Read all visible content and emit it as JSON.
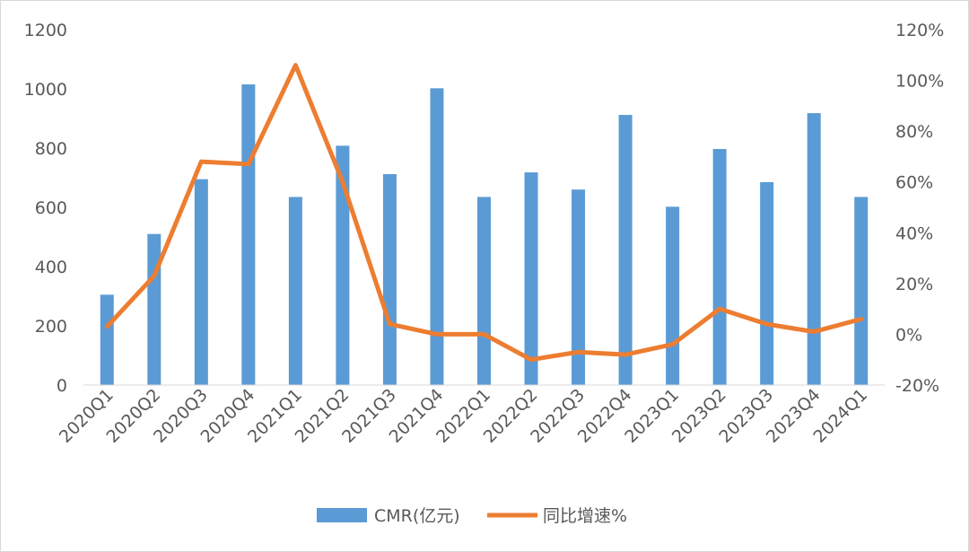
{
  "chart_data": {
    "type": "bar",
    "categories": [
      "2020Q1",
      "2020Q2",
      "2020Q3",
      "2020Q4",
      "2021Q1",
      "2021Q2",
      "2021Q3",
      "2021Q4",
      "2022Q1",
      "2022Q2",
      "2022Q3",
      "2022Q4",
      "2023Q1",
      "2023Q2",
      "2023Q3",
      "2023Q4",
      "2024Q1"
    ],
    "series": [
      {
        "name": "CMR(亿元)",
        "type": "bar",
        "axis": "left",
        "color": "#5b9bd5",
        "values": [
          305,
          510,
          695,
          1015,
          635,
          808,
          712,
          1002,
          635,
          718,
          660,
          912,
          602,
          797,
          685,
          918,
          635
        ]
      },
      {
        "name": "同比增速%",
        "type": "line",
        "axis": "right",
        "color": "#ed7d31",
        "values": [
          3,
          23,
          68,
          67,
          106,
          60,
          4,
          0,
          0,
          -10,
          -7,
          -8,
          -4,
          10,
          4,
          1,
          6
        ]
      }
    ],
    "y_left": {
      "ylim": [
        0,
        1200
      ],
      "ticks": [
        0,
        200,
        400,
        600,
        800,
        1000,
        1200
      ]
    },
    "y_right": {
      "ylim": [
        -20,
        120
      ],
      "ticks": [
        "-20%",
        "0%",
        "20%",
        "40%",
        "60%",
        "80%",
        "100%",
        "120%"
      ],
      "tick_values": [
        -20,
        0,
        20,
        40,
        60,
        80,
        100,
        120
      ]
    },
    "title": "",
    "xlabel": "",
    "ylabel": "",
    "grid": false,
    "legend": "bottom-center"
  }
}
